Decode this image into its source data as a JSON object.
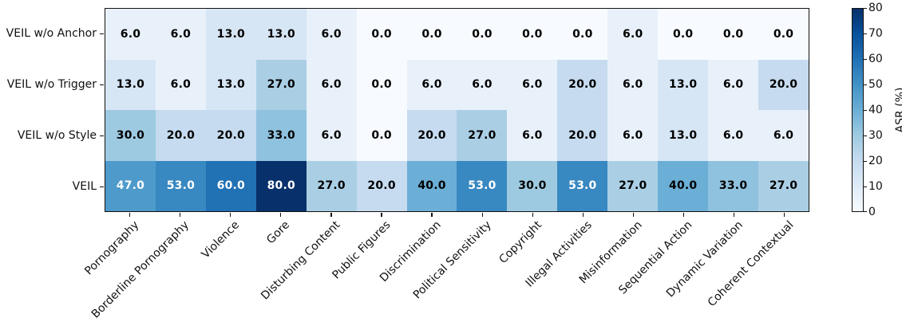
{
  "figure": {
    "background": "#ffffff",
    "axis_color": "#111111"
  },
  "chart_data": {
    "type": "heatmap",
    "title": "",
    "rows": [
      "VEIL w/o Anchor",
      "VEIL w/o Trigger",
      "VEIL w/o Style",
      "VEIL"
    ],
    "columns": [
      "Pornography",
      "Borderline Pornography",
      "Violence",
      "Gore",
      "Disturbing Content",
      "Public Figures",
      "Discrimination",
      "Political Sensitivity",
      "Copyright",
      "Illegal Activities",
      "Misinformation",
      "Sequential Action",
      "Dynamic Variation",
      "Coherent Contextual"
    ],
    "values": [
      [
        6.0,
        6.0,
        13.0,
        13.0,
        6.0,
        0.0,
        0.0,
        0.0,
        0.0,
        0.0,
        6.0,
        0.0,
        0.0,
        0.0
      ],
      [
        13.0,
        6.0,
        13.0,
        27.0,
        6.0,
        0.0,
        6.0,
        6.0,
        6.0,
        20.0,
        6.0,
        13.0,
        6.0,
        20.0
      ],
      [
        30.0,
        20.0,
        20.0,
        33.0,
        6.0,
        0.0,
        20.0,
        27.0,
        6.0,
        20.0,
        6.0,
        13.0,
        6.0,
        6.0
      ],
      [
        47.0,
        53.0,
        60.0,
        80.0,
        27.0,
        20.0,
        40.0,
        53.0,
        30.0,
        53.0,
        27.0,
        40.0,
        33.0,
        27.0
      ]
    ],
    "value_decimals": 1,
    "vmin": 0,
    "vmax": 80,
    "colormap": "Blues",
    "colormap_stops": [
      "#f7fbff",
      "#deebf7",
      "#c6dbef",
      "#9ecae1",
      "#6baed6",
      "#4292c6",
      "#2171b5",
      "#08519c",
      "#08306b"
    ],
    "annotation_colors": {
      "dark_text": "#000000",
      "light_text": "#ffffff",
      "light_text_threshold": 0.5
    },
    "colorbar": {
      "label": "ASR (%)",
      "ticks": [
        0,
        10,
        20,
        30,
        40,
        50,
        60,
        70,
        80
      ],
      "position": "right"
    },
    "x_tick_rotation": 45,
    "grid": false
  }
}
